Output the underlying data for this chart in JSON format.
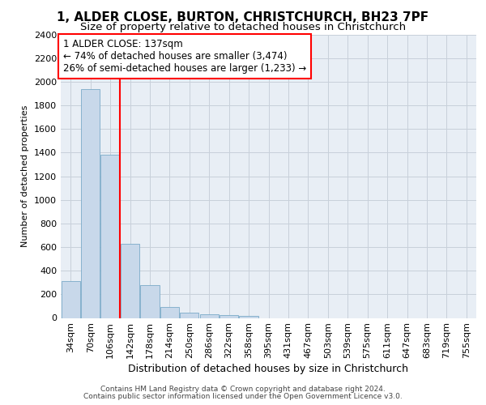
{
  "title_line1": "1, ALDER CLOSE, BURTON, CHRISTCHURCH, BH23 7PF",
  "title_line2": "Size of property relative to detached houses in Christchurch",
  "xlabel": "Distribution of detached houses by size in Christchurch",
  "ylabel": "Number of detached properties",
  "footer_line1": "Contains HM Land Registry data © Crown copyright and database right 2024.",
  "footer_line2": "Contains public sector information licensed under the Open Government Licence v3.0.",
  "categories": [
    "34sqm",
    "70sqm",
    "106sqm",
    "142sqm",
    "178sqm",
    "214sqm",
    "250sqm",
    "286sqm",
    "322sqm",
    "358sqm",
    "395sqm",
    "431sqm",
    "467sqm",
    "503sqm",
    "539sqm",
    "575sqm",
    "611sqm",
    "647sqm",
    "683sqm",
    "719sqm",
    "755sqm"
  ],
  "values": [
    315,
    1940,
    1380,
    625,
    275,
    95,
    45,
    28,
    22,
    18,
    0,
    0,
    0,
    0,
    0,
    0,
    0,
    0,
    0,
    0,
    0
  ],
  "bar_color": "#c8d8ea",
  "bar_edge_color": "#7aaac8",
  "grid_color": "#c8d0da",
  "vline_x_idx": 3,
  "vline_color": "red",
  "annotation_text": "1 ALDER CLOSE: 137sqm\n← 74% of detached houses are smaller (3,474)\n26% of semi-detached houses are larger (1,233) →",
  "ylim_max": 2400,
  "ytick_step": 200,
  "bg_color": "#e8eef5",
  "title1_fontsize": 11,
  "title2_fontsize": 9.5,
  "tick_fontsize": 8,
  "ylabel_fontsize": 8,
  "xlabel_fontsize": 9,
  "ann_fontsize": 8.5,
  "footer_fontsize": 6.5
}
